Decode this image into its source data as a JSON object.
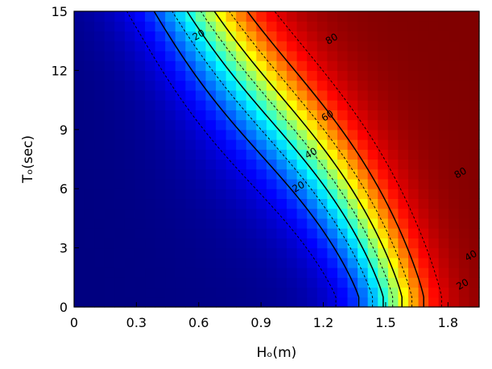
{
  "chart_data": {
    "type": "heatmap",
    "title": "",
    "xlabel": "Hₒ(m)",
    "ylabel": "Tₒ(sec)",
    "xlim": [
      0,
      1.95
    ],
    "ylim": [
      0,
      15
    ],
    "xticks": [
      0,
      0.3,
      0.6,
      0.9,
      1.2,
      1.5,
      1.8
    ],
    "xtick_labels": [
      "0",
      "0.3",
      "0.6",
      "0.9",
      "1.2",
      "1.5",
      "1.8"
    ],
    "yticks": [
      0,
      3,
      6,
      9,
      12,
      15
    ],
    "ytick_labels": [
      "0",
      "3",
      "6",
      "9",
      "12",
      "15"
    ],
    "colormap": "jet",
    "value_range": [
      0,
      100
    ],
    "contour_levels_solid": [
      20,
      40,
      60,
      80
    ],
    "contour_levels_dashed": [
      10,
      30,
      50,
      70,
      90
    ],
    "contour_labels": [
      {
        "text": "20",
        "x": 0.6,
        "y": 13.8
      },
      {
        "text": "80",
        "x": 1.24,
        "y": 13.6
      },
      {
        "text": "60",
        "x": 1.22,
        "y": 9.7
      },
      {
        "text": "40",
        "x": 1.14,
        "y": 7.8
      },
      {
        "text": "20",
        "x": 1.08,
        "y": 6.1
      },
      {
        "text": "80",
        "x": 1.86,
        "y": 6.8
      },
      {
        "text": "40",
        "x": 1.91,
        "y": 2.6
      },
      {
        "text": "20",
        "x": 1.87,
        "y": 1.15
      }
    ],
    "grid": false,
    "legend": "none"
  }
}
